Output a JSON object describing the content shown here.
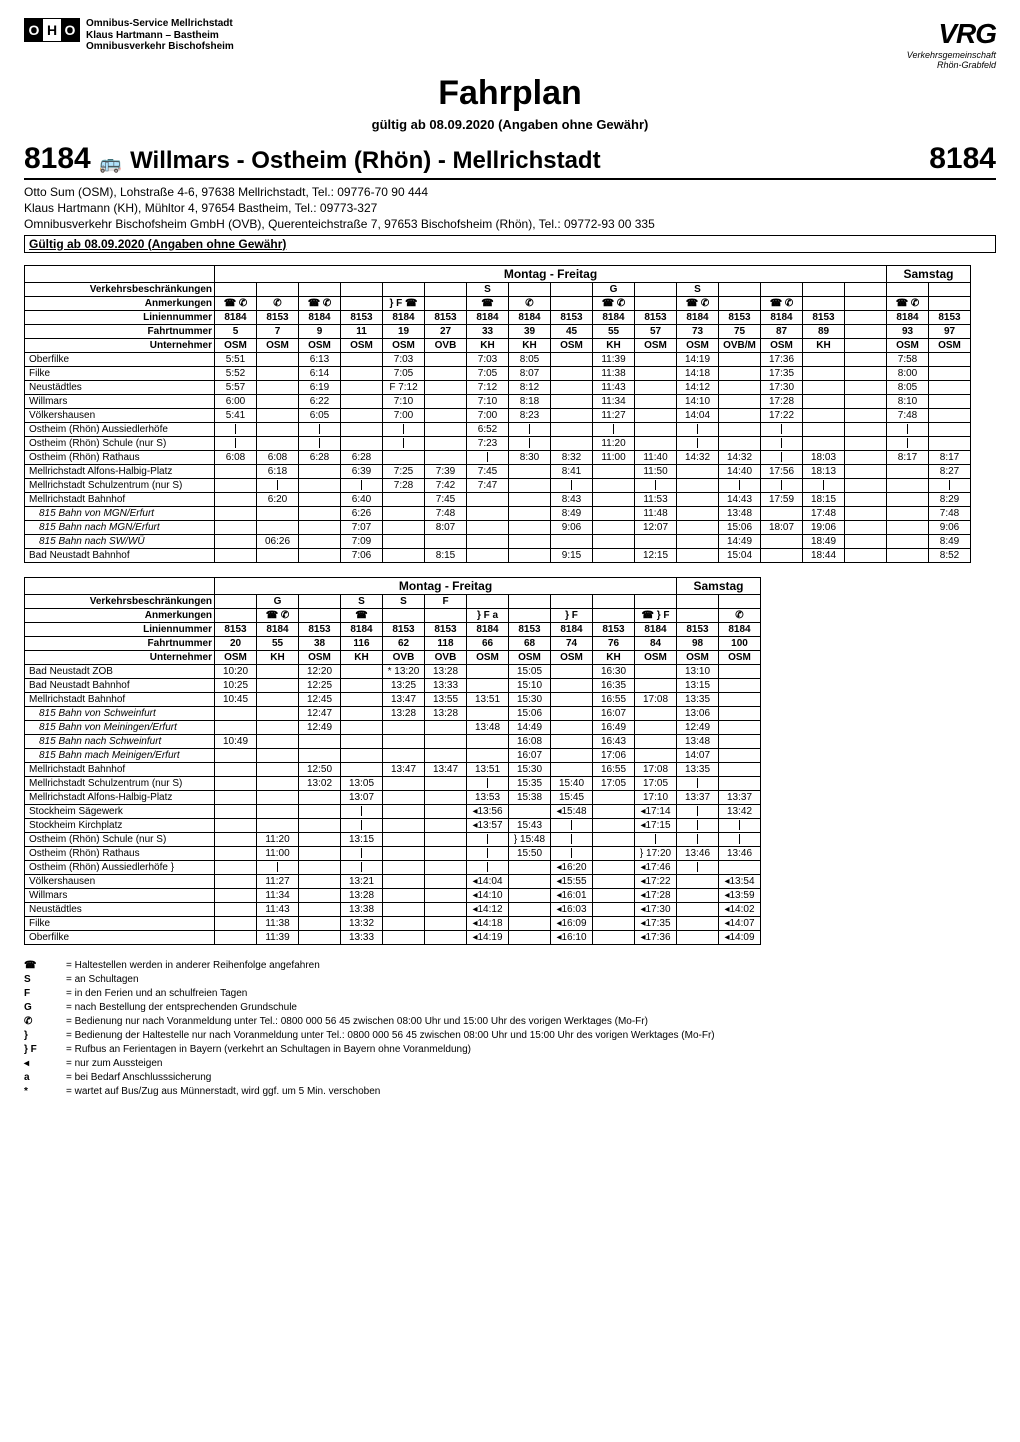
{
  "page": {
    "title": "Fahrplan",
    "subline": "gültig ab 08.09.2020 (Angaben ohne Gewähr)",
    "route_number": "8184",
    "route_title": "Willmars - Ostheim (Rhön) - Mellrichstadt",
    "operators": [
      "Otto Sum (OSM), Lohstraße 4-6, 97638 Mellrichstadt, Tel.: 09776-70 90 444",
      "Klaus Hartmann (KH), Mühltor 4, 97654 Bastheim, Tel.: 09773-327",
      "Omnibusverkehr Bischofsheim GmbH (OVB), Querenteichstraße 7, 97653 Bischofsheim (Rhön), Tel.: 09772-93 00 335"
    ],
    "valid_box": "Gültig ab 08.09.2020 (Angaben ohne Gewähr)",
    "logo_left": {
      "letters": [
        "O",
        "H",
        "O"
      ],
      "lines": [
        "Omnibus-Service Mellrichstadt",
        "Klaus Hartmann – Bastheim",
        "Omnibusverkehr Bischofsheim"
      ]
    },
    "logo_right_top": "VRG",
    "logo_right_sub": "Verkehrsgemeinschaft\nRhön-Grabfeld"
  },
  "table1": {
    "day_header": {
      "weekdays": "Montag - Freitag",
      "saturday": "Samstag"
    },
    "meta_rows": [
      {
        "label": "Verkehrsbeschränkungen",
        "cells": [
          "",
          "",
          "",
          "",
          "",
          "",
          "S",
          "",
          "",
          "G",
          "",
          "S",
          "",
          "",
          "",
          "",
          "",
          ""
        ]
      },
      {
        "label": "Anmerkungen",
        "cells": [
          "☎ ✆",
          "✆",
          "☎ ✆",
          "",
          "} F ☎",
          "",
          "☎",
          "✆",
          "",
          "☎ ✆",
          "",
          "☎ ✆",
          "",
          "☎ ✆",
          "",
          "",
          "☎ ✆",
          ""
        ]
      },
      {
        "label": "Liniennummer",
        "cells": [
          "8184",
          "8153",
          "8184",
          "8153",
          "8184",
          "8153",
          "8184",
          "8184",
          "8153",
          "8184",
          "8153",
          "8184",
          "8153",
          "8184",
          "8153",
          "",
          "8184",
          "8153"
        ]
      },
      {
        "label": "Fahrtnummer",
        "cells": [
          "5",
          "7",
          "9",
          "11",
          "19",
          "27",
          "33",
          "39",
          "45",
          "55",
          "57",
          "73",
          "75",
          "87",
          "89",
          "",
          "93",
          "97"
        ]
      },
      {
        "label": "Unternehmer",
        "cells": [
          "OSM",
          "OSM",
          "OSM",
          "OSM",
          "OSM",
          "OVB",
          "KH",
          "KH",
          "OSM",
          "KH",
          "OSM",
          "OSM",
          "OVB/M",
          "OSM",
          "KH",
          "",
          "OSM",
          "OSM"
        ]
      }
    ],
    "stops": [
      {
        "name": "Oberfilke",
        "times": [
          "5:51",
          "",
          "6:13",
          "",
          "7:03",
          "",
          "7:03",
          "8:05",
          "",
          "11:39",
          "",
          "14:19",
          "",
          "17:36",
          "",
          "",
          "7:58",
          ""
        ]
      },
      {
        "name": "Filke",
        "times": [
          "5:52",
          "",
          "6:14",
          "",
          "7:05",
          "",
          "7:05",
          "8:07",
          "",
          "11:38",
          "",
          "14:18",
          "",
          "17:35",
          "",
          "",
          "8:00",
          ""
        ]
      },
      {
        "name": "Neustädtles",
        "times": [
          "5:57",
          "",
          "6:19",
          "",
          "F 7:12",
          "",
          "7:12",
          "8:12",
          "",
          "11:43",
          "",
          "14:12",
          "",
          "17:30",
          "",
          "",
          "8:05",
          ""
        ]
      },
      {
        "name": "Willmars",
        "times": [
          "6:00",
          "",
          "6:22",
          "",
          "7:10",
          "",
          "7:10",
          "8:18",
          "",
          "11:34",
          "",
          "14:10",
          "",
          "17:28",
          "",
          "",
          "8:10",
          ""
        ]
      },
      {
        "name": "Völkershausen",
        "times": [
          "5:41",
          "",
          "6:05",
          "",
          "7:00",
          "",
          "7:00",
          "8:23",
          "",
          "11:27",
          "",
          "14:04",
          "",
          "17:22",
          "",
          "",
          "7:48",
          ""
        ]
      },
      {
        "name": "Ostheim (Rhön) Aussiedlerhöfe",
        "times": [
          "⏐",
          "",
          "⏐",
          "",
          "⏐",
          "",
          "6:52",
          "⏐",
          "",
          "⏐",
          "",
          "⏐",
          "",
          "⏐",
          "",
          "",
          "⏐",
          ""
        ]
      },
      {
        "name": "Ostheim (Rhön) Schule (nur S)",
        "times": [
          "⏐",
          "",
          "⏐",
          "",
          "⏐",
          "",
          "7:23",
          "⏐",
          "",
          "11:20",
          "",
          "⏐",
          "",
          "⏐",
          "",
          "",
          "⏐",
          ""
        ]
      },
      {
        "name": "Ostheim (Rhön) Rathaus",
        "times": [
          "6:08",
          "6:08",
          "6:28",
          "6:28",
          "",
          "",
          "⏐",
          "8:30",
          "8:32",
          "11:00",
          "11:40",
          "14:32",
          "14:32",
          "⏐",
          "18:03",
          "",
          "8:17",
          "8:17"
        ]
      },
      {
        "name": "Mellrichstadt Alfons-Halbig-Platz",
        "times": [
          "",
          "6:18",
          "",
          "6:39",
          "7:25",
          "7:39",
          "7:45",
          "",
          "8:41",
          "",
          "11:50",
          "",
          "14:40",
          "17:56",
          "18:13",
          "",
          "",
          "8:27"
        ]
      },
      {
        "name": "Mellrichstadt Schulzentrum (nur S)",
        "times": [
          "",
          "⏐",
          "",
          "⏐",
          "7:28",
          "7:42",
          "7:47",
          "",
          "⏐",
          "",
          "⏐",
          "",
          "⏐",
          "⏐",
          "⏐",
          "",
          "",
          "⏐"
        ]
      },
      {
        "name": "Mellrichstadt Bahnhof",
        "times": [
          "",
          "6:20",
          "",
          "6:40",
          "",
          "7:45",
          "",
          "",
          "8:43",
          "",
          "11:53",
          "",
          "14:43",
          "17:59",
          "18:15",
          "",
          "",
          "8:29"
        ]
      },
      {
        "name": "815 Bahn von MGN/Erfurt",
        "indent": true,
        "times": [
          "",
          "",
          "",
          "6:26",
          "",
          "7:48",
          "",
          "",
          "8:49",
          "",
          "11:48",
          "",
          "13:48",
          "",
          "17:48",
          "",
          "",
          "7:48"
        ]
      },
      {
        "name": "815 Bahn nach MGN/Erfurt",
        "indent": true,
        "times": [
          "",
          "",
          "",
          "7:07",
          "",
          "8:07",
          "",
          "",
          "9:06",
          "",
          "12:07",
          "",
          "15:06",
          "18:07",
          "19:06",
          "",
          "",
          "9:06"
        ]
      },
      {
        "name": "815 Bahn nach SW/WÜ",
        "indent": true,
        "times": [
          "",
          "06:26",
          "",
          "7:09",
          "",
          "",
          "",
          "",
          "",
          "",
          "",
          "",
          "14:49",
          "",
          "18:49",
          "",
          "",
          "8:49"
        ]
      },
      {
        "name": "Bad Neustadt Bahnhof",
        "times": [
          "",
          "",
          "",
          "7:06",
          "",
          "8:15",
          "",
          "",
          "9:15",
          "",
          "12:15",
          "",
          "15:04",
          "",
          "18:44",
          "",
          "",
          "8:52"
        ]
      }
    ],
    "col_count": 18,
    "samstag_start_col": 16
  },
  "table2": {
    "day_header": {
      "weekdays": "Montag - Freitag",
      "saturday": "Samstag"
    },
    "meta_rows": [
      {
        "label": "Verkehrsbeschränkungen",
        "cells": [
          "",
          "G",
          "",
          "S",
          "S",
          "F",
          "",
          "",
          "",
          "",
          "",
          "",
          ""
        ]
      },
      {
        "label": "Anmerkungen",
        "cells": [
          "",
          "☎ ✆",
          "",
          "☎",
          "",
          "",
          "} F a",
          "",
          "} F",
          "",
          "☎ } F",
          "",
          "✆"
        ]
      },
      {
        "label": "Liniennummer",
        "cells": [
          "8153",
          "8184",
          "8153",
          "8184",
          "8153",
          "8153",
          "8184",
          "8153",
          "8184",
          "8153",
          "8184",
          "8153",
          "8184"
        ]
      },
      {
        "label": "Fahrtnummer",
        "cells": [
          "20",
          "55",
          "38",
          "116",
          "62",
          "118",
          "66",
          "68",
          "74",
          "76",
          "84",
          "98",
          "100"
        ]
      },
      {
        "label": "Unternehmer",
        "cells": [
          "OSM",
          "KH",
          "OSM",
          "KH",
          "OVB",
          "OVB",
          "OSM",
          "OSM",
          "OSM",
          "KH",
          "OSM",
          "OSM",
          "OSM"
        ]
      }
    ],
    "stops": [
      {
        "name": "Bad Neustadt ZOB",
        "times": [
          "10:20",
          "",
          "12:20",
          "",
          "* 13:20",
          "13:28",
          "",
          "15:05",
          "",
          "16:30",
          "",
          "13:10",
          ""
        ]
      },
      {
        "name": "Bad Neustadt Bahnhof",
        "times": [
          "10:25",
          "",
          "12:25",
          "",
          "13:25",
          "13:33",
          "",
          "15:10",
          "",
          "16:35",
          "",
          "13:15",
          ""
        ]
      },
      {
        "name": "Mellrichstadt Bahnhof",
        "times": [
          "10:45",
          "",
          "12:45",
          "",
          "13:47",
          "13:55",
          "13:51",
          "15:30",
          "",
          "16:55",
          "17:08",
          "13:35",
          ""
        ]
      },
      {
        "name": "815 Bahn von Schweinfurt",
        "indent": true,
        "times": [
          "",
          "",
          "12:47",
          "",
          "13:28",
          "13:28",
          "",
          "15:06",
          "",
          "16:07",
          "",
          "13:06",
          ""
        ]
      },
      {
        "name": "815 Bahn von Meiningen/Erfurt",
        "indent": true,
        "times": [
          "",
          "",
          "12:49",
          "",
          "",
          "",
          "13:48",
          "14:49",
          "",
          "16:49",
          "",
          "12:49",
          ""
        ]
      },
      {
        "name": "815 Bahn nach Schweinfurt",
        "indent": true,
        "times": [
          "10:49",
          "",
          "",
          "",
          "",
          "",
          "",
          "16:08",
          "",
          "16:43",
          "",
          "13:48",
          ""
        ]
      },
      {
        "name": "815 Bahn mach Meinigen/Erfurt",
        "indent": true,
        "times": [
          "",
          "",
          "",
          "",
          "",
          "",
          "",
          "16:07",
          "",
          "17:06",
          "",
          "14:07",
          ""
        ]
      },
      {
        "name": "Mellrichstadt Bahnhof",
        "times": [
          "",
          "",
          "12:50",
          "",
          "13:47",
          "13:47",
          "13:51",
          "15:30",
          "",
          "16:55",
          "17:08",
          "13:35",
          ""
        ]
      },
      {
        "name": "Mellrichstadt Schulzentrum (nur S)",
        "times": [
          "",
          "",
          "13:02",
          "13:05",
          "",
          "",
          "⏐",
          "15:35",
          "15:40",
          "17:05",
          "17:05",
          "⏐",
          ""
        ]
      },
      {
        "name": "Mellrichstadt Alfons-Halbig-Platz",
        "times": [
          "",
          "",
          "",
          "13:07",
          "",
          "",
          "13:53",
          "15:38",
          "15:45",
          "",
          "17:10",
          "13:37",
          "13:37"
        ]
      },
      {
        "name": "Stockheim Sägewerk",
        "times": [
          "",
          "",
          "",
          "⏐",
          "",
          "",
          "◂13:56",
          "",
          "◂15:48",
          "",
          "◂17:14",
          "⏐",
          "13:42"
        ]
      },
      {
        "name": "Stockheim Kirchplatz",
        "times": [
          "",
          "",
          "",
          "⏐",
          "",
          "",
          "◂13:57",
          "15:43",
          "⏐",
          "",
          "◂17:15",
          "⏐",
          "⏐"
        ]
      },
      {
        "name": "Ostheim (Rhön) Schule (nur S)",
        "times": [
          "",
          "11:20",
          "",
          "13:15",
          "",
          "",
          "⏐",
          "} 15:48",
          "⏐",
          "",
          "⏐",
          "⏐",
          "⏐"
        ]
      },
      {
        "name": "Ostheim (Rhön) Rathaus",
        "times": [
          "",
          "11:00",
          "",
          "⏐",
          "",
          "",
          "⏐",
          "15:50",
          "⏐",
          "",
          "} 17:20",
          "13:46",
          "13:46"
        ]
      },
      {
        "name": "Ostheim (Rhön) Aussiedlerhöfe     }",
        "times": [
          "",
          "⏐",
          "",
          "⏐",
          "",
          "",
          "⏐",
          "",
          "◂16:20",
          "",
          "◂17:46",
          "⏐",
          ""
        ]
      },
      {
        "name": "Völkershausen",
        "times": [
          "",
          "11:27",
          "",
          "13:21",
          "",
          "",
          "◂14:04",
          "",
          "◂15:55",
          "",
          "◂17:22",
          "",
          "◂13:54"
        ]
      },
      {
        "name": "Willmars",
        "times": [
          "",
          "11:34",
          "",
          "13:28",
          "",
          "",
          "◂14:10",
          "",
          "◂16:01",
          "",
          "◂17:28",
          "",
          "◂13:59"
        ]
      },
      {
        "name": "Neustädtles",
        "times": [
          "",
          "11:43",
          "",
          "13:38",
          "",
          "",
          "◂14:12",
          "",
          "◂16:03",
          "",
          "◂17:30",
          "",
          "◂14:02"
        ]
      },
      {
        "name": "Filke",
        "times": [
          "",
          "11:38",
          "",
          "13:32",
          "",
          "",
          "◂14:18",
          "",
          "◂16:09",
          "",
          "◂17:35",
          "",
          "◂14:07"
        ]
      },
      {
        "name": "Oberfilke",
        "times": [
          "",
          "11:39",
          "",
          "13:33",
          "",
          "",
          "◂14:19",
          "",
          "◂16:10",
          "",
          "◂17:36",
          "",
          "◂14:09"
        ]
      }
    ],
    "col_count": 13,
    "samstag_start_col": 11
  },
  "legend": [
    {
      "sym": "☎",
      "text": "= Haltestellen werden in anderer Reihenfolge angefahren"
    },
    {
      "sym": "S",
      "text": "= an Schultagen"
    },
    {
      "sym": "F",
      "text": "= in den Ferien und an schulfreien Tagen"
    },
    {
      "sym": "G",
      "text": "= nach Bestellung der entsprechenden Grundschule"
    },
    {
      "sym": "✆",
      "text": "= Bedienung nur nach Voranmeldung unter Tel.: 0800 000 56 45 zwischen 08:00 Uhr und 15:00 Uhr des vorigen Werktages (Mo-Fr)"
    },
    {
      "sym": "}",
      "text": "= Bedienung der Haltestelle nur nach Voranmeldung unter Tel.: 0800 000 56 45 zwischen 08:00 Uhr und 15:00 Uhr des vorigen Werktages (Mo-Fr)"
    },
    {
      "sym": "} F",
      "text": "= Rufbus an Ferientagen in Bayern (verkehrt an Schultagen in Bayern ohne Voranmeldung)"
    },
    {
      "sym": "◂",
      "text": "= nur zum Aussteigen"
    },
    {
      "sym": "a",
      "text": "= bei Bedarf Anschlusssicherung"
    },
    {
      "sym": "*",
      "text": "= wartet auf Bus/Zug aus Münnerstadt, wird ggf. um 5 Min. verschoben"
    }
  ]
}
